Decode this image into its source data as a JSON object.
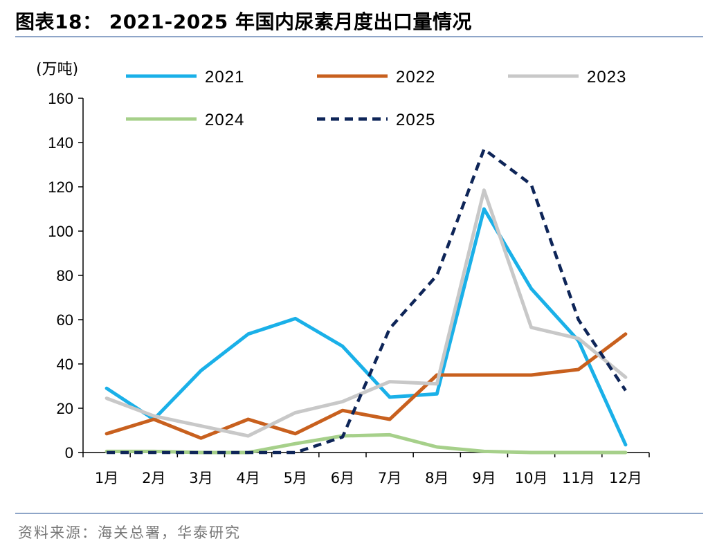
{
  "title": "图表18： 2021-2025 年国内尿素月度出口量情况",
  "source": "资料来源：海关总署，华泰研究",
  "chart_data": {
    "type": "line",
    "unit_label": "(万吨)",
    "categories": [
      "1月",
      "2月",
      "3月",
      "4月",
      "5月",
      "6月",
      "7月",
      "8月",
      "9月",
      "10月",
      "11月",
      "12月"
    ],
    "ylim": [
      0,
      160
    ],
    "yticks": [
      0,
      20,
      40,
      60,
      80,
      100,
      120,
      140,
      160
    ],
    "grid": false,
    "legend_position": "top",
    "series": [
      {
        "name": "2021",
        "color": "#1ab0e8",
        "dash": "solid",
        "values": [
          29,
          15,
          37,
          53.5,
          60.5,
          48,
          25,
          26.5,
          110,
          74,
          50.5,
          3.5
        ]
      },
      {
        "name": "2022",
        "color": "#c8601e",
        "dash": "solid",
        "values": [
          8.5,
          15,
          6.5,
          15,
          8.5,
          19,
          15,
          35,
          35,
          35,
          37.5,
          53.5
        ]
      },
      {
        "name": "2023",
        "color": "#c8c8c8",
        "dash": "solid",
        "values": [
          24.5,
          16.5,
          12,
          7.5,
          18,
          23,
          32,
          31,
          118.5,
          56.5,
          51.5,
          34
        ]
      },
      {
        "name": "2024",
        "color": "#a6d08a",
        "dash": "solid",
        "values": [
          0.5,
          0.5,
          0,
          0,
          4,
          7.5,
          8,
          2.5,
          0.5,
          0,
          0,
          0
        ]
      },
      {
        "name": "2025",
        "color": "#0e2558",
        "dash": "dashed",
        "values": [
          0,
          0,
          0,
          0,
          0,
          7,
          56,
          80,
          137,
          121,
          60,
          28
        ]
      }
    ]
  }
}
